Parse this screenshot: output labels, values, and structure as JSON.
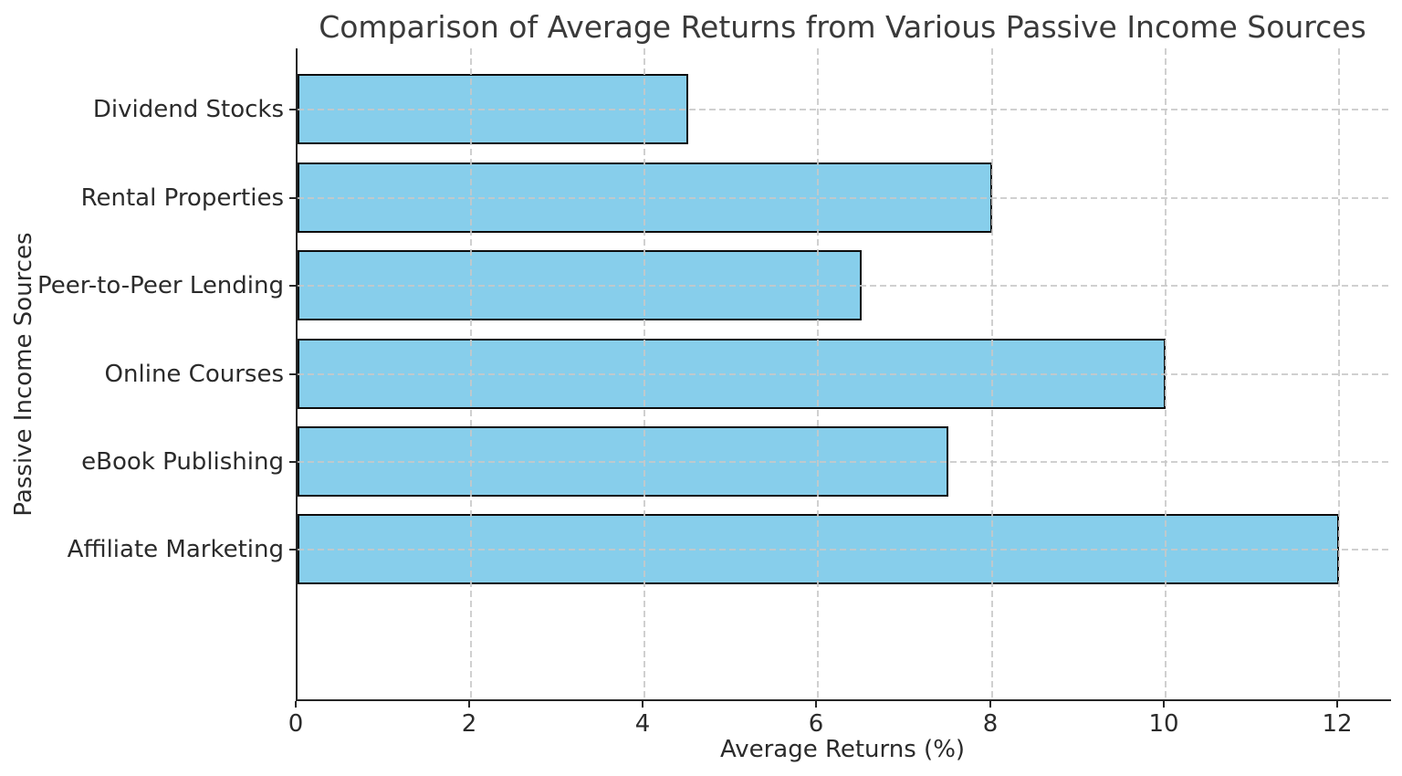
{
  "chart_data": {
    "type": "bar",
    "orientation": "horizontal",
    "title": "Comparison of Average Returns from Various Passive Income Sources",
    "xlabel": "Average Returns (%)",
    "ylabel": "Passive Income Sources",
    "categories": [
      "Dividend Stocks",
      "Rental Properties",
      "Peer-to-Peer Lending",
      "Online Courses",
      "eBook Publishing",
      "Affiliate Marketing"
    ],
    "values": [
      4.5,
      8.0,
      6.5,
      10.0,
      7.5,
      12.0
    ],
    "x_ticks": [
      "0",
      "2",
      "4",
      "6",
      "8",
      "10",
      "12"
    ],
    "x_tick_values": [
      0,
      2,
      4,
      6,
      8,
      10,
      12
    ],
    "xlim": [
      0,
      12.6
    ],
    "bar_color": "#87CEEB",
    "bar_edge_color": "#0d0d0d",
    "grid": "dashed",
    "grid_color": "#c8c8c8",
    "spine_color": "#262626",
    "text_color": "#2b2b2b",
    "title_color": "#3a3a3a",
    "background": "#ffffff",
    "legend": null
  }
}
